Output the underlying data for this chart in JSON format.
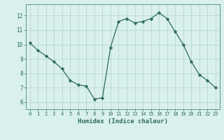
{
  "x": [
    0,
    1,
    2,
    3,
    4,
    5,
    6,
    7,
    8,
    9,
    10,
    11,
    12,
    13,
    14,
    15,
    16,
    17,
    18,
    19,
    20,
    21,
    22,
    23
  ],
  "y": [
    10.1,
    9.6,
    9.2,
    8.8,
    8.3,
    7.5,
    7.2,
    7.1,
    6.2,
    6.3,
    9.8,
    11.6,
    11.8,
    11.5,
    11.6,
    11.8,
    12.2,
    11.8,
    10.9,
    10.0,
    8.8,
    7.9,
    7.5,
    7.0
  ],
  "line_color": "#2e6b5e",
  "marker": "D",
  "marker_size": 2.2,
  "bg_color": "#d9f0ed",
  "grid_color": "#b8d8d2",
  "xlabel": "Humidex (Indice chaleur)",
  "ylim": [
    5.5,
    12.8
  ],
  "xlim": [
    -0.5,
    23.5
  ],
  "yticks": [
    6,
    7,
    8,
    9,
    10,
    11,
    12
  ],
  "xticks": [
    0,
    1,
    2,
    3,
    4,
    5,
    6,
    7,
    8,
    9,
    10,
    11,
    12,
    13,
    14,
    15,
    16,
    17,
    18,
    19,
    20,
    21,
    22,
    23
  ],
  "tick_color": "#2e6b5e",
  "spine_color": "#5a9a8a"
}
